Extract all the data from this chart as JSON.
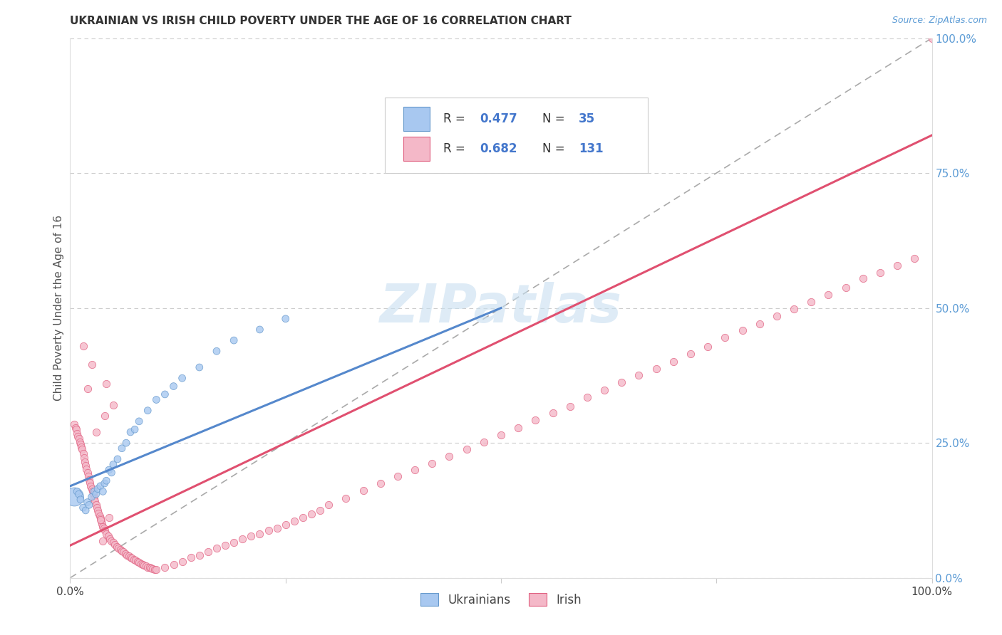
{
  "title": "UKRAINIAN VS IRISH CHILD POVERTY UNDER THE AGE OF 16 CORRELATION CHART",
  "source": "Source: ZipAtlas.com",
  "ylabel": "Child Poverty Under the Age of 16",
  "legend_label1": "Ukrainians",
  "legend_label2": "Irish",
  "blue_fill": "#a8c8f0",
  "blue_edge": "#6699cc",
  "pink_fill": "#f4b8c8",
  "pink_edge": "#e06080",
  "blue_line": "#5588cc",
  "pink_line": "#e05070",
  "dash_color": "#aaaaaa",
  "watermark_color": "#c8dff0",
  "title_color": "#333333",
  "source_color": "#5b9bd5",
  "right_tick_color": "#5b9bd5",
  "grid_color": "#cccccc",
  "ukr_x": [
    0.005,
    0.008,
    0.01,
    0.012,
    0.015,
    0.018,
    0.02,
    0.022,
    0.025,
    0.028,
    0.03,
    0.032,
    0.035,
    0.038,
    0.04,
    0.042,
    0.045,
    0.048,
    0.05,
    0.055,
    0.06,
    0.065,
    0.07,
    0.075,
    0.08,
    0.09,
    0.1,
    0.11,
    0.12,
    0.13,
    0.15,
    0.17,
    0.19,
    0.22,
    0.25
  ],
  "ukr_y": [
    0.15,
    0.16,
    0.155,
    0.145,
    0.13,
    0.125,
    0.14,
    0.135,
    0.15,
    0.16,
    0.155,
    0.165,
    0.17,
    0.16,
    0.175,
    0.18,
    0.2,
    0.195,
    0.21,
    0.22,
    0.24,
    0.25,
    0.27,
    0.275,
    0.29,
    0.31,
    0.33,
    0.34,
    0.355,
    0.37,
    0.39,
    0.42,
    0.44,
    0.46,
    0.48
  ],
  "ukr_sizes": [
    350,
    50,
    50,
    50,
    50,
    50,
    50,
    50,
    50,
    50,
    50,
    50,
    50,
    50,
    50,
    50,
    50,
    50,
    50,
    50,
    50,
    50,
    50,
    50,
    50,
    50,
    50,
    50,
    50,
    50,
    50,
    50,
    50,
    50,
    50
  ],
  "irish_x": [
    0.005,
    0.006,
    0.007,
    0.008,
    0.009,
    0.01,
    0.011,
    0.012,
    0.013,
    0.014,
    0.015,
    0.016,
    0.017,
    0.018,
    0.019,
    0.02,
    0.021,
    0.022,
    0.023,
    0.024,
    0.025,
    0.026,
    0.027,
    0.028,
    0.029,
    0.03,
    0.031,
    0.032,
    0.033,
    0.034,
    0.035,
    0.036,
    0.037,
    0.038,
    0.039,
    0.04,
    0.042,
    0.044,
    0.046,
    0.048,
    0.05,
    0.052,
    0.054,
    0.056,
    0.058,
    0.06,
    0.062,
    0.064,
    0.066,
    0.068,
    0.07,
    0.072,
    0.074,
    0.076,
    0.078,
    0.08,
    0.082,
    0.084,
    0.086,
    0.088,
    0.09,
    0.092,
    0.094,
    0.096,
    0.098,
    0.1,
    0.11,
    0.12,
    0.13,
    0.14,
    0.15,
    0.16,
    0.17,
    0.18,
    0.19,
    0.2,
    0.21,
    0.22,
    0.23,
    0.24,
    0.25,
    0.26,
    0.27,
    0.28,
    0.29,
    0.3,
    0.32,
    0.34,
    0.36,
    0.38,
    0.4,
    0.42,
    0.44,
    0.46,
    0.48,
    0.5,
    0.52,
    0.54,
    0.56,
    0.58,
    0.6,
    0.62,
    0.64,
    0.66,
    0.68,
    0.7,
    0.72,
    0.74,
    0.76,
    0.78,
    0.8,
    0.82,
    0.84,
    0.86,
    0.88,
    0.9,
    0.92,
    0.94,
    0.96,
    0.98,
    1.0,
    0.035,
    0.045,
    0.04,
    0.05,
    0.038,
    0.042,
    0.02,
    0.025,
    0.03,
    0.015
  ],
  "irish_y": [
    0.285,
    0.278,
    0.275,
    0.268,
    0.262,
    0.258,
    0.252,
    0.248,
    0.242,
    0.238,
    0.23,
    0.222,
    0.215,
    0.208,
    0.202,
    0.195,
    0.188,
    0.182,
    0.176,
    0.17,
    0.165,
    0.16,
    0.155,
    0.148,
    0.142,
    0.136,
    0.13,
    0.125,
    0.12,
    0.115,
    0.11,
    0.105,
    0.1,
    0.095,
    0.092,
    0.088,
    0.082,
    0.078,
    0.072,
    0.068,
    0.065,
    0.062,
    0.058,
    0.055,
    0.052,
    0.05,
    0.048,
    0.045,
    0.042,
    0.04,
    0.038,
    0.036,
    0.034,
    0.032,
    0.03,
    0.028,
    0.026,
    0.025,
    0.024,
    0.022,
    0.02,
    0.019,
    0.018,
    0.017,
    0.016,
    0.015,
    0.02,
    0.025,
    0.03,
    0.038,
    0.042,
    0.048,
    0.055,
    0.06,
    0.065,
    0.072,
    0.078,
    0.082,
    0.088,
    0.092,
    0.098,
    0.105,
    0.112,
    0.118,
    0.125,
    0.135,
    0.148,
    0.162,
    0.175,
    0.188,
    0.2,
    0.212,
    0.225,
    0.238,
    0.252,
    0.265,
    0.278,
    0.292,
    0.305,
    0.318,
    0.335,
    0.348,
    0.362,
    0.375,
    0.388,
    0.4,
    0.415,
    0.428,
    0.445,
    0.458,
    0.47,
    0.485,
    0.498,
    0.512,
    0.525,
    0.538,
    0.555,
    0.565,
    0.578,
    0.592,
    1.0,
    0.108,
    0.112,
    0.3,
    0.32,
    0.068,
    0.36,
    0.35,
    0.395,
    0.27,
    0.43
  ],
  "blue_line_x": [
    0.0,
    0.5
  ],
  "blue_line_y": [
    0.17,
    0.5
  ],
  "pink_line_x": [
    0.0,
    1.0
  ],
  "pink_line_y": [
    0.06,
    0.82
  ],
  "xmin": 0.0,
  "xmax": 1.0,
  "ymin": 0.0,
  "ymax": 1.0
}
